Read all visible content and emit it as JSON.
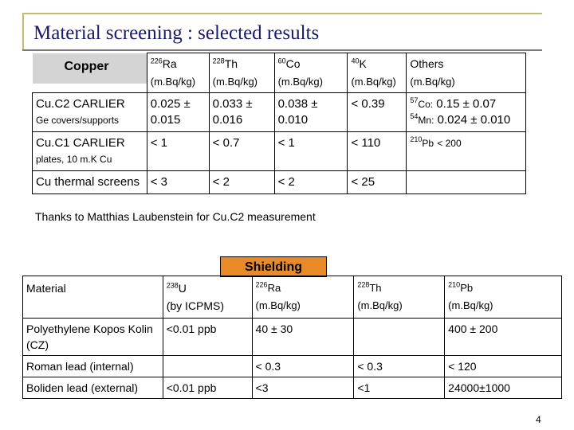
{
  "title": "Material screening : selected results",
  "copper_table": {
    "corner_label": "Copper",
    "headers": [
      {
        "iso": "226",
        "el": "Ra",
        "unit": "(m.Bq/kg)"
      },
      {
        "iso": "228",
        "el": "Th",
        "unit": "(m.Bq/kg)"
      },
      {
        "iso": "60",
        "el": "Co",
        "unit": "(m.Bq/kg)"
      },
      {
        "iso": "40",
        "el": "K",
        "unit": "(m.Bq/kg)"
      },
      {
        "iso": "",
        "el": "Others",
        "unit": "(m.Bq/kg)"
      }
    ],
    "rows": [
      {
        "name": "Cu.C2 CARLIER",
        "note": "Ge covers/supports",
        "ra": "0.025 ± 0.015",
        "th": "0.033 ± 0.016",
        "co": "0.038 ± 0.010",
        "k": "< 0.39",
        "others": [
          {
            "iso": "57",
            "el": "Co:",
            "val": "0.15 ± 0.07"
          },
          {
            "iso": "54",
            "el": "Mn:",
            "val": "0.024 ± 0.010"
          }
        ]
      },
      {
        "name": "Cu.C1 CARLIER",
        "note": "plates, 10 m.K Cu",
        "ra": "< 1",
        "th": "< 0.7",
        "co": "< 1",
        "k": "< 110",
        "others": [
          {
            "iso": "210",
            "el": "Pb",
            "val": "< 200"
          }
        ]
      },
      {
        "name": "Cu thermal screens",
        "note": "",
        "ra": "< 3",
        "th": "< 2",
        "co": "< 2",
        "k": "< 25",
        "others": []
      }
    ]
  },
  "thanks": "Thanks to Matthias Laubenstein for Cu.C2 measurement",
  "shielding_label": "Shielding",
  "shield_table": {
    "corner_label": "Material",
    "headers": [
      {
        "iso": "238",
        "el": "U",
        "unit": "(by ICPMS)"
      },
      {
        "iso": "226",
        "el": "Ra",
        "unit": "(m.Bq/kg)"
      },
      {
        "iso": "228",
        "el": "Th",
        "unit": "(m.Bq/kg)"
      },
      {
        "iso": "210",
        "el": "Pb",
        "unit": "(m.Bq/kg)"
      }
    ],
    "rows": [
      {
        "name": "Polyethylene Kopos Kolin (CZ)",
        "u": "<0.01 ppb",
        "ra": "40 ± 30",
        "th": "",
        "pb": "400 ± 200"
      },
      {
        "name": "Roman lead (internal)",
        "u": "",
        "ra": "< 0.3",
        "th": "< 0.3",
        "pb": "< 120"
      },
      {
        "name": "Boliden lead (external)",
        "u": "<0.01 ppb",
        "ra": "<3",
        "th": "<1",
        "pb": "24000±1000"
      }
    ]
  },
  "page_number": "4"
}
